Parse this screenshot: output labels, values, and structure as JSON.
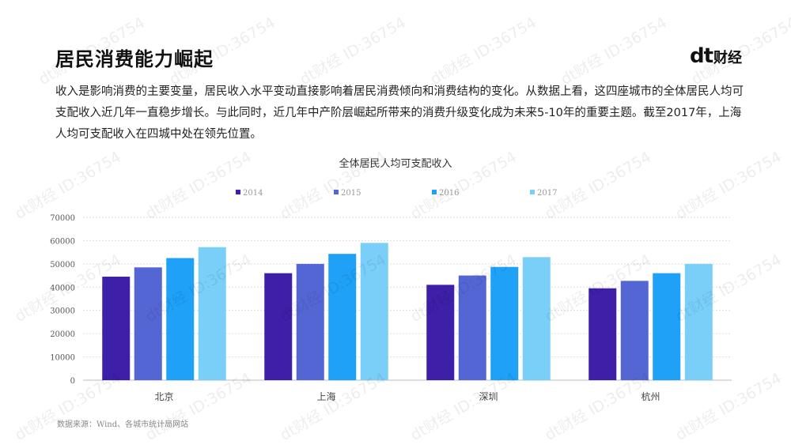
{
  "page": {
    "title": "居民消费能力崛起",
    "logo_dt": "dt",
    "logo_cn": "财经",
    "intro": "收入是影响消费的主要变量，居民收入水平变动直接影响着居民消费倾向和消费结构的变化。从数据上看，这四座城市的全体居民人均可支配收入近几年一直稳步增长。与此同时，近几年中产阶层崛起所带来的消费升级变化成为未来5-10年的重要主题。截至2017年，上海人均可支配收入在四城中处在领先位置。",
    "source": "数据来源：Wind、各城市统计局网站",
    "watermark": "dt财经 ID:36754"
  },
  "chart_data": {
    "type": "bar",
    "title": "全体居民人均可支配收入",
    "categories": [
      "北京",
      "上海",
      "深圳",
      "杭州"
    ],
    "series": [
      {
        "name": "2014",
        "color": "#3d1fa8",
        "values": [
          44500,
          46000,
          41000,
          39500
        ]
      },
      {
        "name": "2015",
        "color": "#5466d4",
        "values": [
          48500,
          50000,
          45000,
          42700
        ]
      },
      {
        "name": "2016",
        "color": "#1ea1f7",
        "values": [
          52500,
          54300,
          48700,
          46000
        ]
      },
      {
        "name": "2017",
        "color": "#79cff8",
        "values": [
          57200,
          59000,
          52900,
          50000
        ]
      }
    ],
    "ylim": [
      0,
      70000
    ],
    "yticks": [
      0,
      10000,
      20000,
      30000,
      40000,
      50000,
      60000,
      70000
    ],
    "grid": true,
    "legend_position": "top"
  }
}
